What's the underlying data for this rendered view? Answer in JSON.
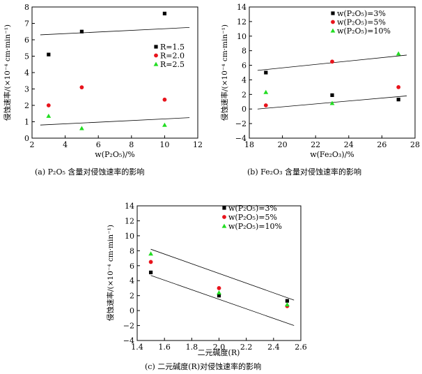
{
  "chart_data": [
    {
      "id": "a",
      "type": "scatter",
      "caption": "(a) P₂O₅ 含量对侵蚀速率的影响",
      "xlabel": "w(P₂O₅)/%",
      "ylabel": "侵蚀速率/(×10⁻⁴ cm·min⁻¹)",
      "xlim": [
        2,
        12
      ],
      "ylim": [
        0,
        8
      ],
      "xticks": [
        2,
        4,
        6,
        8,
        10,
        12
      ],
      "yticks": [
        0,
        1,
        2,
        3,
        4,
        5,
        6,
        7,
        8
      ],
      "legend_position": "right",
      "series": [
        {
          "name": "R=1.5",
          "marker": "square",
          "color": "#000000",
          "points": [
            [
              3,
              5.1
            ],
            [
              5,
              6.5
            ],
            [
              10,
              7.6
            ]
          ]
        },
        {
          "name": "R=2.0",
          "marker": "circle",
          "color": "#e8141c",
          "points": [
            [
              3,
              2.0
            ],
            [
              5,
              3.1
            ],
            [
              10,
              2.35
            ]
          ]
        },
        {
          "name": "R=2.5",
          "marker": "triangle",
          "color": "#22dd22",
          "points": [
            [
              3,
              1.35
            ],
            [
              5,
              0.6
            ],
            [
              10,
              0.8
            ]
          ]
        }
      ],
      "fit_lines": [
        {
          "x": [
            2.5,
            11.5
          ],
          "y": [
            6.3,
            6.75
          ]
        },
        {
          "x": [
            2.5,
            11.5
          ],
          "y": [
            0.8,
            1.25
          ]
        }
      ]
    },
    {
      "id": "b",
      "type": "scatter",
      "caption": "(b) Fe₂O₃ 含量对侵蚀速率的影响",
      "xlabel": "w(Fe₂O₃)/%",
      "ylabel": "侵蚀速率/(×10⁻⁴ cm·min⁻¹)",
      "xlim": [
        18,
        28
      ],
      "ylim": [
        -4,
        14
      ],
      "xticks": [
        18,
        20,
        22,
        24,
        26,
        28
      ],
      "yticks": [
        -4,
        -2,
        0,
        2,
        4,
        6,
        8,
        10,
        12,
        14
      ],
      "legend_position": "top-right",
      "series": [
        {
          "name": "w(P₂O₅)=3%",
          "marker": "square",
          "color": "#000000",
          "points": [
            [
              19,
              5.0
            ],
            [
              23,
              1.9
            ],
            [
              27,
              1.3
            ]
          ]
        },
        {
          "name": "w(P₂O₅)=5%",
          "marker": "circle",
          "color": "#e8141c",
          "points": [
            [
              19,
              0.5
            ],
            [
              23,
              6.5
            ],
            [
              27,
              3.0
            ]
          ]
        },
        {
          "name": "w(P₂O₅)=10%",
          "marker": "triangle",
          "color": "#22dd22",
          "points": [
            [
              19,
              2.3
            ],
            [
              23,
              0.8
            ],
            [
              27,
              7.6
            ]
          ]
        }
      ],
      "fit_lines": [
        {
          "x": [
            18.5,
            27.5
          ],
          "y": [
            5.3,
            7.4
          ]
        },
        {
          "x": [
            18.5,
            27.5
          ],
          "y": [
            0.0,
            1.8
          ]
        }
      ]
    },
    {
      "id": "c",
      "type": "scatter",
      "caption": "(c) 二元碱度(R)对侵蚀速率的影响",
      "xlabel": "二元碱度(R)",
      "ylabel": "侵蚀速率/(×10⁻⁴ cm·min⁻¹)",
      "xlim": [
        1.4,
        2.6
      ],
      "ylim": [
        -4,
        14
      ],
      "xticks": [
        1.4,
        1.6,
        1.8,
        2.0,
        2.2,
        2.4,
        2.6
      ],
      "yticks": [
        -4,
        -2,
        0,
        2,
        4,
        6,
        8,
        10,
        12,
        14
      ],
      "legend_position": "top-right",
      "series": [
        {
          "name": "w(P₂O₅)=3%",
          "marker": "square",
          "color": "#000000",
          "points": [
            [
              1.5,
              5.1
            ],
            [
              2.0,
              2.0
            ],
            [
              2.5,
              1.3
            ]
          ]
        },
        {
          "name": "w(P₂O₅)=5%",
          "marker": "circle",
          "color": "#e8141c",
          "points": [
            [
              1.5,
              6.5
            ],
            [
              2.0,
              3.0
            ],
            [
              2.5,
              0.6
            ]
          ]
        },
        {
          "name": "w(P₂O₅)=10%",
          "marker": "triangle",
          "color": "#22dd22",
          "points": [
            [
              1.5,
              7.6
            ],
            [
              2.0,
              2.4
            ],
            [
              2.5,
              0.8
            ]
          ]
        }
      ],
      "fit_lines": [
        {
          "x": [
            1.5,
            2.55
          ],
          "y": [
            8.2,
            1.4
          ]
        },
        {
          "x": [
            1.5,
            2.55
          ],
          "y": [
            4.7,
            -2.0
          ]
        }
      ]
    }
  ]
}
